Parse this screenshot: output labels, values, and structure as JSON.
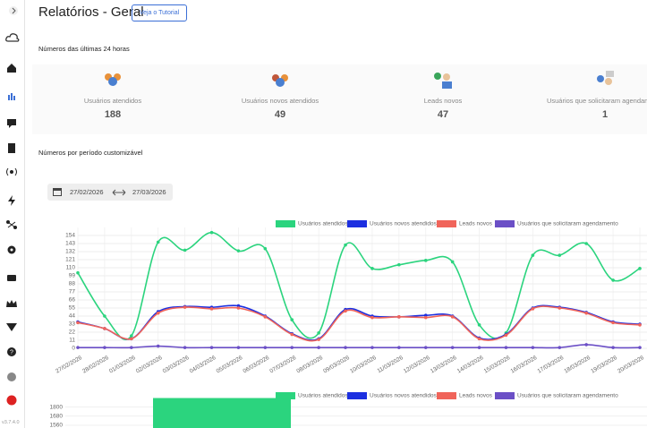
{
  "header": {
    "title": "Relatórios - Geral",
    "button": "Veja o Tutorial"
  },
  "sections": {
    "last24": "Números das últimas 24 horas",
    "custom": "Números por período customizável"
  },
  "cards": [
    {
      "label": "Usuários atendidos",
      "value": "188"
    },
    {
      "label": "Usuários novos atendidos",
      "value": "49"
    },
    {
      "label": "Leads novos",
      "value": "47"
    },
    {
      "label": "Usuários que solicitaram agendamento",
      "value": "1"
    }
  ],
  "date_range": {
    "start": "27/02/2026",
    "end": "27/03/2026"
  },
  "version": "v3.7.4.0",
  "chart_data": [
    {
      "type": "line",
      "categories": [
        "27/02/2026",
        "28/02/2026",
        "01/03/2026",
        "02/03/2026",
        "03/03/2026",
        "04/03/2026",
        "05/03/2026",
        "06/03/2026",
        "07/03/2026",
        "08/03/2026",
        "09/03/2026",
        "10/03/2026",
        "11/03/2026",
        "12/03/2026",
        "13/03/2026",
        "14/03/2026",
        "15/03/2026",
        "16/03/2026",
        "17/03/2026",
        "18/03/2026",
        "19/03/2026",
        "20/03/2026"
      ],
      "series": [
        {
          "name": "Usuários atendidos",
          "color": "#2bd47e",
          "values": [
            103,
            44,
            17,
            145,
            134,
            158,
            133,
            136,
            39,
            21,
            141,
            109,
            114,
            120,
            118,
            32,
            21,
            127,
            127,
            143,
            93,
            109
          ]
        },
        {
          "name": "Usuários novos atendidos",
          "color": "#1c2fe0",
          "values": [
            36,
            27,
            13,
            50,
            57,
            56,
            58,
            44,
            20,
            13,
            53,
            44,
            43,
            45,
            44,
            14,
            19,
            55,
            56,
            49,
            36,
            33
          ]
        },
        {
          "name": "Leads novos",
          "color": "#f0645a",
          "values": [
            35,
            27,
            13,
            48,
            56,
            54,
            55,
            43,
            19,
            12,
            51,
            42,
            43,
            42,
            43,
            13,
            18,
            54,
            55,
            48,
            35,
            32
          ]
        },
        {
          "name": "Usuários que solicitaram agendamento",
          "color": "#6b4fc6",
          "values": [
            1,
            1,
            1,
            3,
            1,
            1,
            1,
            1,
            1,
            1,
            1,
            1,
            1,
            1,
            1,
            1,
            1,
            1,
            1,
            5,
            1,
            1
          ]
        }
      ],
      "ylim": [
        0,
        165
      ],
      "yticks": [
        0,
        11,
        22,
        33,
        44,
        55,
        66,
        77,
        88,
        99,
        110,
        121,
        132,
        143,
        154
      ],
      "grid": true
    },
    {
      "type": "bar",
      "categories": [
        null
      ],
      "series": [
        {
          "name": "Usuários atendidos",
          "color": "#2bd47e",
          "values": [
            1920
          ]
        },
        {
          "name": "Usuários novos atendidos",
          "color": "#1c2fe0",
          "values": [
            null
          ]
        },
        {
          "name": "Leads novos",
          "color": "#f0645a",
          "values": [
            null
          ]
        },
        {
          "name": "Usuários que solicitaram agendamento",
          "color": "#6b4fc6",
          "values": [
            null
          ]
        }
      ],
      "ylim": [
        1500,
        1950
      ],
      "yticks": [
        1800,
        1680,
        1560
      ],
      "grid": true
    }
  ]
}
